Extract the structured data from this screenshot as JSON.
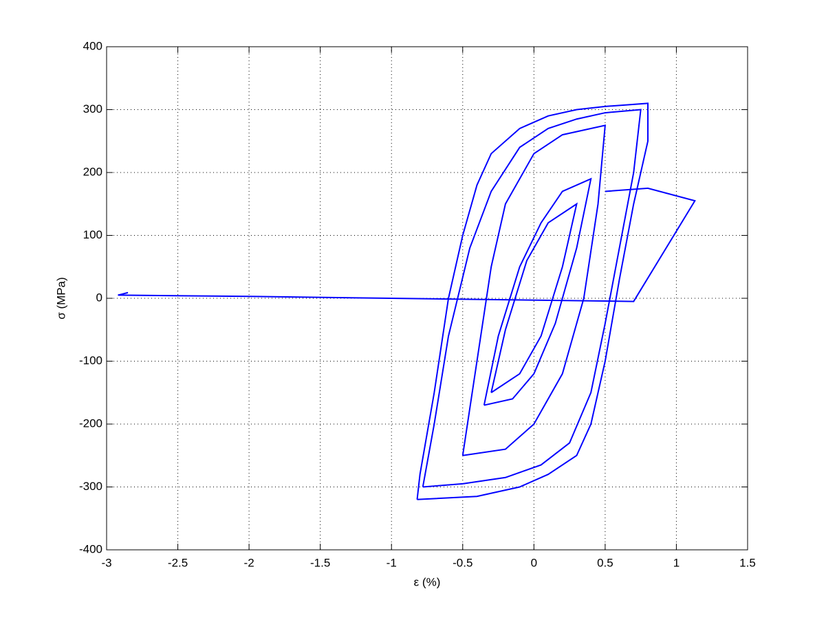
{
  "chart_data": {
    "type": "line",
    "xlabel": "ε (%)",
    "ylabel": "σ (MPa)",
    "xlim": [
      -3,
      1.5
    ],
    "xticks": [
      -3,
      -2.5,
      -2,
      -1.5,
      -1,
      -0.5,
      0,
      0.5,
      1,
      1.5
    ],
    "ylim": [
      -400,
      400
    ],
    "yticks": [
      -400,
      -300,
      -200,
      -100,
      0,
      100,
      200,
      300,
      400
    ],
    "grid": true,
    "series": [
      {
        "color": "#0000ff",
        "x": [
          -0.82,
          -0.8,
          -0.7,
          -0.6,
          -0.5,
          -0.4,
          -0.3,
          -0.1,
          0.1,
          0.3,
          0.5,
          0.8,
          0.8,
          0.7,
          0.6,
          0.5,
          0.4,
          0.3,
          0.1,
          -0.1,
          -0.4,
          -0.82
        ],
        "values": [
          -320,
          -280,
          -150,
          0,
          100,
          180,
          230,
          270,
          290,
          300,
          305,
          310,
          250,
          150,
          30,
          -100,
          -200,
          -250,
          -280,
          -300,
          -315,
          -320
        ]
      },
      {
        "color": "#0000ff",
        "x": [
          -0.78,
          -0.7,
          -0.6,
          -0.45,
          -0.3,
          -0.1,
          0.1,
          0.3,
          0.5,
          0.75,
          0.7,
          0.6,
          0.5,
          0.4,
          0.25,
          0.05,
          -0.2,
          -0.5,
          -0.78
        ],
        "values": [
          -300,
          -200,
          -60,
          80,
          170,
          240,
          270,
          285,
          295,
          300,
          200,
          80,
          -40,
          -150,
          -230,
          -265,
          -285,
          -295,
          -300
        ]
      },
      {
        "color": "#0000ff",
        "x": [
          -0.5,
          -0.4,
          -0.3,
          -0.2,
          0,
          0.2,
          0.5,
          0.45,
          0.35,
          0.2,
          0,
          -0.2,
          -0.5
        ],
        "values": [
          -250,
          -100,
          50,
          150,
          230,
          260,
          275,
          150,
          0,
          -120,
          -200,
          -240,
          -250
        ]
      },
      {
        "color": "#0000ff",
        "x": [
          -0.35,
          -0.25,
          -0.1,
          0.05,
          0.2,
          0.4,
          0.3,
          0.15,
          0,
          -0.15,
          -0.35
        ],
        "values": [
          -170,
          -60,
          50,
          120,
          170,
          190,
          80,
          -40,
          -120,
          -160,
          -170
        ]
      },
      {
        "color": "#0000ff",
        "x": [
          -0.3,
          -0.2,
          -0.05,
          0.1,
          0.3,
          0.2,
          0.05,
          -0.1,
          -0.3
        ],
        "values": [
          -150,
          -50,
          60,
          120,
          150,
          50,
          -60,
          -120,
          -150
        ]
      },
      {
        "color": "#0000ff",
        "x": [
          0.5,
          0.8,
          1.13,
          0.7,
          -1,
          -2,
          -2.92,
          -2.85
        ],
        "values": [
          170,
          175,
          155,
          -5,
          0,
          3,
          5,
          9
        ]
      }
    ]
  }
}
